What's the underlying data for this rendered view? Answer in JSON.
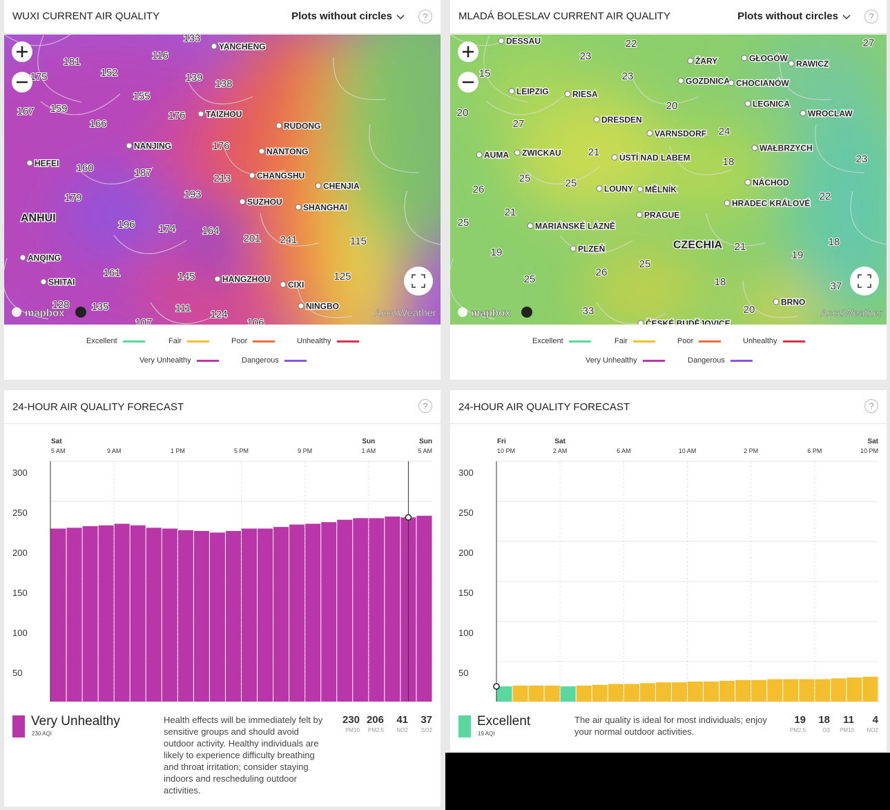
{
  "panels": [
    {
      "title": "WUXI CURRENT AIR QUALITY",
      "dropdown": "Plots without circles",
      "help": "?",
      "map": {
        "places": [
          "YANCHENG",
          "TAIZHOU",
          "RUDONG",
          "NANJING",
          "NANTONG",
          "HEFEI",
          "CHANGSHU",
          "CHENJIA",
          "SUZHOU",
          "SHANGHAI",
          "ANHUI",
          "ANQING",
          "SHITAI",
          "HANGZHOU",
          "CIXI",
          "NINGBO"
        ],
        "readings": [
          133,
          116,
          181,
          152,
          175,
          139,
          138,
          155,
          167,
          159,
          176,
          166,
          176,
          160,
          187,
          213,
          179,
          193,
          196,
          174,
          164,
          201,
          241,
          115,
          161,
          145,
          125,
          128,
          135,
          111,
          124,
          107,
          106
        ],
        "attribution": [
          "mapbox",
          "AccuWeather"
        ]
      },
      "legend": [
        {
          "name": "Excellent",
          "color": "#5ad8a0"
        },
        {
          "name": "Fair",
          "color": "#f0c030"
        },
        {
          "name": "Poor",
          "color": "#e8703a"
        },
        {
          "name": "Unhealthy",
          "color": "#d8324a"
        },
        {
          "name": "Very Unhealthy",
          "color": "#b836a8"
        },
        {
          "name": "Dangerous",
          "color": "#8a55e0"
        }
      ]
    },
    {
      "title": "MLADÁ BOLESLAV CURRENT AIR QUALITY",
      "dropdown": "Plots without circles",
      "help": "?",
      "map": {
        "places": [
          "DESSAU",
          "ŽARY",
          "GŁOGÓW",
          "RAWICZ",
          "GOZDNICA",
          "CHOCIANÓW",
          "LEIPZIG",
          "RIESA",
          "LEGNICA",
          "WROCLAW",
          "DRESDEN",
          "VARNSDORF",
          "WAŁBRZYCH",
          "AUMA",
          "ZWICKAU",
          "ÚSTÍ NAD LABEM",
          "NÁCHOD",
          "LOUNY",
          "MĚLNÍK",
          "HRADEC KRÁLOVÉ",
          "PRAGUE",
          "MARIÁNSKÉ LÁZNĚ",
          "CZECHIA",
          "PLZEŇ",
          "BRNO",
          "ČESKÉ BUDĚJOVICE"
        ],
        "readings": [
          23,
          22,
          27,
          15,
          23,
          20,
          20,
          27,
          24,
          21,
          18,
          23,
          25,
          25,
          26,
          22,
          21,
          25,
          18,
          21,
          19,
          19,
          25,
          26,
          25,
          18,
          37,
          20,
          33
        ],
        "attribution": [
          "mapbox",
          "AccuWeather"
        ]
      },
      "legend": [
        {
          "name": "Excellent",
          "color": "#5ad8a0"
        },
        {
          "name": "Fair",
          "color": "#f0c030"
        },
        {
          "name": "Poor",
          "color": "#e8703a"
        },
        {
          "name": "Unhealthy",
          "color": "#d8324a"
        },
        {
          "name": "Very Unhealthy",
          "color": "#b836a8"
        },
        {
          "name": "Dangerous",
          "color": "#8a55e0"
        }
      ]
    }
  ],
  "chart_data": [
    {
      "type": "bar",
      "title": "24-HOUR AIR QUALITY FORECAST",
      "help": "?",
      "x_ticks": [
        {
          "day": "Sat",
          "time": "5 AM"
        },
        {
          "time": "9 AM"
        },
        {
          "time": "1 PM"
        },
        {
          "time": "5 PM"
        },
        {
          "time": "9 PM"
        },
        {
          "day": "Sun",
          "time": "1 AM"
        },
        {
          "day": "Sun",
          "time": "5 AM"
        }
      ],
      "values": [
        216,
        217,
        219,
        220,
        222,
        220,
        217,
        216,
        214,
        213,
        211,
        213,
        216,
        216,
        218,
        221,
        222,
        224,
        227,
        229,
        229,
        231,
        230,
        232
      ],
      "color": "#b836a8",
      "ylim": [
        0,
        300
      ],
      "yticks": [
        50,
        100,
        150,
        200,
        250,
        300
      ]
    },
    {
      "type": "bar",
      "title": "24-HOUR AIR QUALITY FORECAST",
      "help": "?",
      "x_ticks": [
        {
          "day": "Fri",
          "time": "10 PM"
        },
        {
          "day": "Sat",
          "time": "2 AM"
        },
        {
          "time": "6 AM"
        },
        {
          "time": "10 AM"
        },
        {
          "time": "2 PM"
        },
        {
          "time": "6 PM"
        },
        {
          "day": "Sat",
          "time": "10 PM"
        }
      ],
      "values": [
        19,
        20,
        20,
        20,
        19,
        20,
        21,
        22,
        22,
        23,
        24,
        24,
        25,
        25,
        26,
        27,
        27,
        28,
        28,
        28,
        28,
        29,
        30,
        31
      ],
      "colors": [
        "#5ad8a0",
        "#f3bf2f",
        "#f3bf2f",
        "#f3bf2f",
        "#5ad8a0",
        "#f3bf2f",
        "#f3bf2f",
        "#f3bf2f",
        "#f3bf2f",
        "#f3bf2f",
        "#f3bf2f",
        "#f3bf2f",
        "#f3bf2f",
        "#f3bf2f",
        "#f3bf2f",
        "#f3bf2f",
        "#f3bf2f",
        "#f3bf2f",
        "#f3bf2f",
        "#f3bf2f",
        "#f3bf2f",
        "#f3bf2f",
        "#f3bf2f",
        "#f3bf2f"
      ],
      "ylim": [
        0,
        300
      ],
      "yticks": [
        50,
        100,
        150,
        200,
        250,
        300
      ]
    }
  ],
  "summaries": [
    {
      "label": "Very Unhealthy",
      "color": "#b836a8",
      "aqi": "230 AQI",
      "text": "Health effects will be immediately felt by sensitive groups and should avoid outdoor activity. Healthy individuals are likely to experience difficulty breathing and throat irritation; consider staying indoors and rescheduling outdoor activities.",
      "pollutants": [
        {
          "value": 230,
          "name": "PM10"
        },
        {
          "value": 206,
          "name": "PM2.5"
        },
        {
          "value": 41,
          "name": "NO2"
        },
        {
          "value": 37,
          "name": "SO2"
        }
      ]
    },
    {
      "label": "Excellent",
      "color": "#5ad8a0",
      "aqi": "19 AQI",
      "text": "The air quality is ideal for most individuals; enjoy your normal outdoor activities.",
      "pollutants": [
        {
          "value": 19,
          "name": "PM2.5"
        },
        {
          "value": 18,
          "name": "O3"
        },
        {
          "value": 11,
          "name": "PM10"
        },
        {
          "value": 4,
          "name": "NO2"
        }
      ]
    }
  ]
}
